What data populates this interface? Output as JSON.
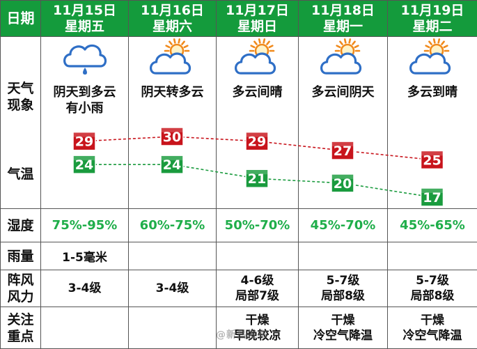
{
  "header": {
    "corner": "日期",
    "days": [
      {
        "date": "11月15日",
        "weekday": "星期五"
      },
      {
        "date": "11月16日",
        "weekday": "星期六"
      },
      {
        "date": "11月17日",
        "weekday": "星期日"
      },
      {
        "date": "11月18日",
        "weekday": "星期一"
      },
      {
        "date": "11月19日",
        "weekday": "星期二"
      }
    ]
  },
  "rows": {
    "weather_label_1": "天气",
    "weather_label_2": "现象",
    "temp_label": "气温",
    "humidity_label": "湿度",
    "rain_label": "雨量",
    "wind_label_1": "阵风",
    "wind_label_2": "风力",
    "focus_label_1": "关注",
    "focus_label_2": "重点"
  },
  "days": [
    {
      "weather_lines": [
        "阴天到多云",
        "有小雨"
      ],
      "icon": "cloud-rain-icon",
      "humidity": "75%-95%",
      "rain": "1-5毫米",
      "wind_lines": [
        "3-4级"
      ],
      "focus_lines": [
        "",
        ""
      ]
    },
    {
      "weather_lines": [
        "阴天转多云"
      ],
      "icon": "sun-cloud-icon",
      "humidity": "60%-75%",
      "rain": "",
      "wind_lines": [
        "3-4级"
      ],
      "focus_lines": [
        "",
        ""
      ]
    },
    {
      "weather_lines": [
        "多云间晴"
      ],
      "icon": "sun-cloud-icon",
      "humidity": "50%-70%",
      "rain": "",
      "wind_lines": [
        "4-6级",
        "局部7级"
      ],
      "focus_lines": [
        "干燥",
        "早晚较凉"
      ]
    },
    {
      "weather_lines": [
        "多云间阴天"
      ],
      "icon": "sun-cloud-icon",
      "humidity": "45%-70%",
      "rain": "",
      "wind_lines": [
        "5-7级",
        "局部8级"
      ],
      "focus_lines": [
        "干燥",
        "冷空气降温"
      ]
    },
    {
      "weather_lines": [
        "多云到晴"
      ],
      "icon": "sun-cloud-icon",
      "humidity": "45%-65%",
      "rain": "",
      "wind_lines": [
        "5-7级",
        "局部8级"
      ],
      "focus_lines": [
        "干燥",
        "冷空气降温"
      ]
    }
  ],
  "temperature": {
    "high": [
      29,
      30,
      29,
      27,
      25
    ],
    "low": [
      24,
      24,
      21,
      20,
      17
    ],
    "high_color": "#c8141c",
    "low_color": "#1a9b3e"
  },
  "watermark": "@新昌发布"
}
